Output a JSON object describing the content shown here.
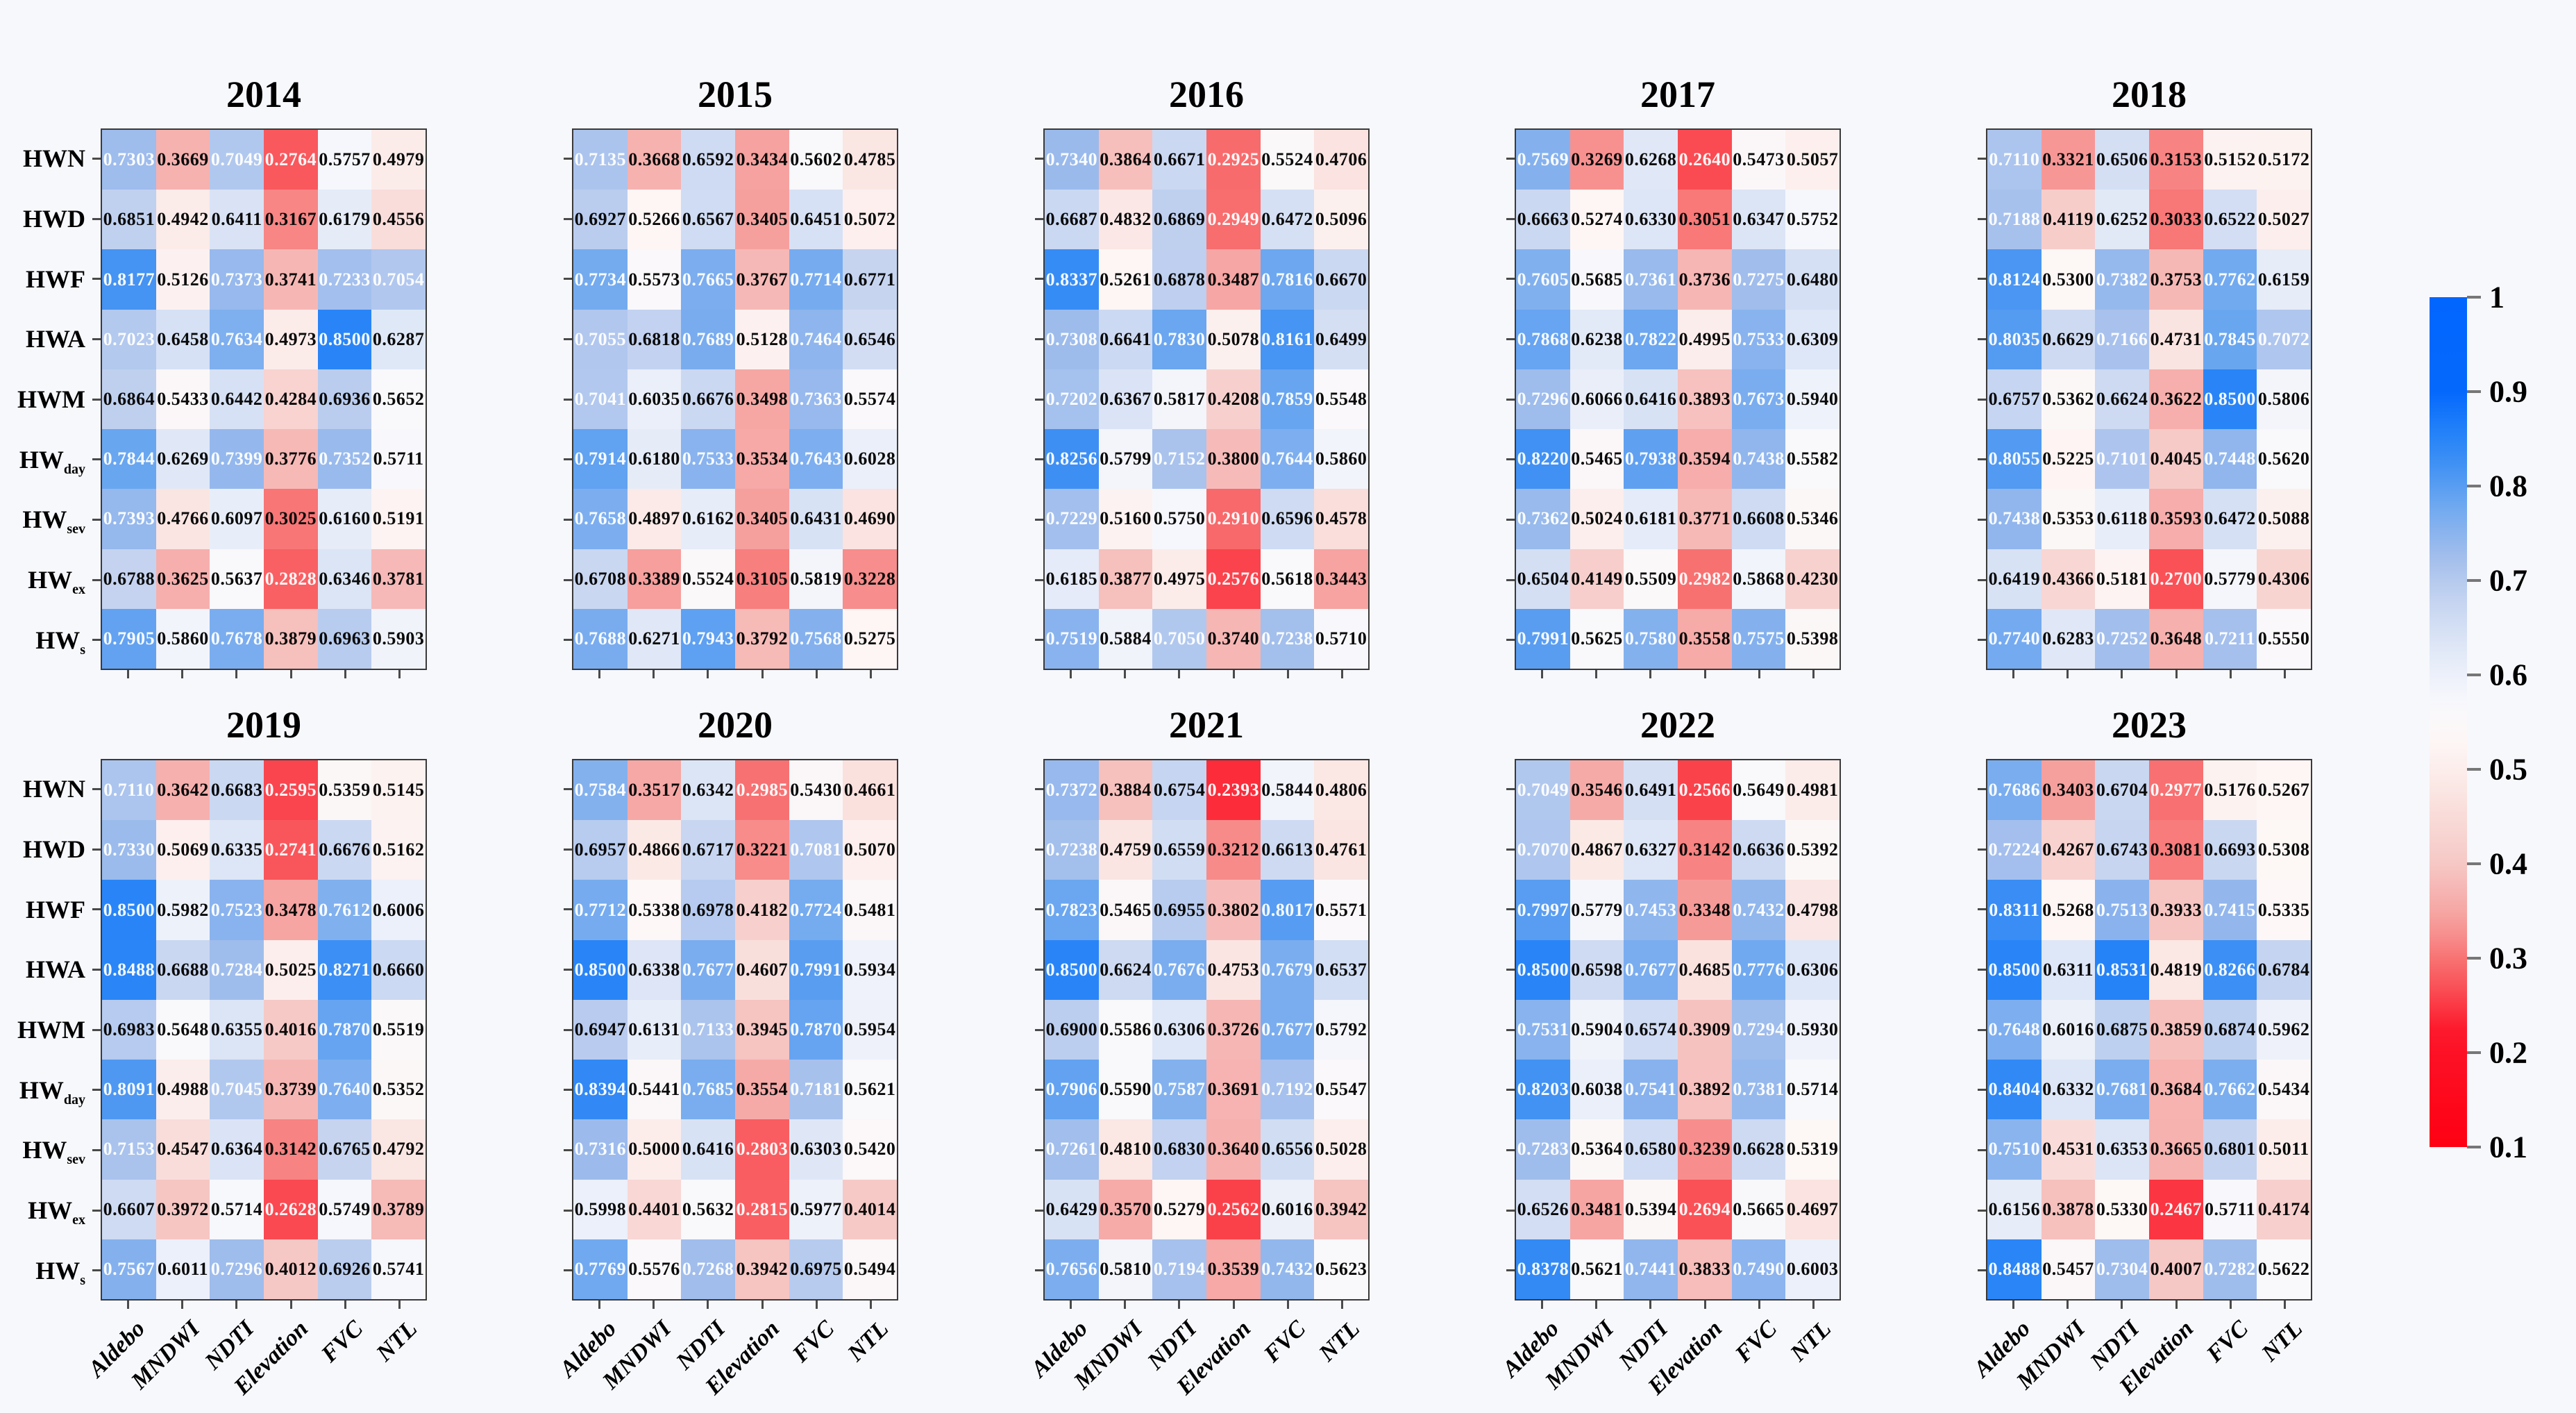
{
  "figure": {
    "background": "#f7f8fc"
  },
  "chart_data": {
    "type": "heatmap",
    "layout": "2 rows x 5 columns of yearly panels, shared colorbar at right",
    "col_labels": [
      "Aldebo",
      "MNDWI",
      "NDTI",
      "Elevation",
      "FVC",
      "NTL"
    ],
    "row_labels": [
      {
        "base": "HWN",
        "sub": ""
      },
      {
        "base": "HWD",
        "sub": ""
      },
      {
        "base": "HWF",
        "sub": ""
      },
      {
        "base": "HWA",
        "sub": ""
      },
      {
        "base": "HWM",
        "sub": ""
      },
      {
        "base": "HW",
        "sub": "day"
      },
      {
        "base": "HW",
        "sub": "sev"
      },
      {
        "base": "HW",
        "sub": "ex"
      },
      {
        "base": "HW",
        "sub": "s"
      }
    ],
    "colorbar": {
      "ticks": [
        "1",
        "0.9",
        "0.8",
        "0.7",
        "0.6",
        "0.5",
        "0.4",
        "0.3",
        "0.2",
        "0.1"
      ],
      "vmax": 1.0,
      "vmin": 0.1,
      "blue_max": "#0166fe",
      "center": "#ffffff",
      "red_max": "#fe0014"
    },
    "panels": [
      {
        "title": "2014",
        "values": [
          [
            "0.7303",
            "0.3669",
            "0.7049",
            "0.2764",
            "0.5757",
            "0.4979"
          ],
          [
            "0.6851",
            "0.4942",
            "0.6411",
            "0.3167",
            "0.6179",
            "0.4556"
          ],
          [
            "0.8177",
            "0.5126",
            "0.7373",
            "0.3741",
            "0.7233",
            "0.7054"
          ],
          [
            "0.7023",
            "0.6458",
            "0.7634",
            "0.4973",
            "0.8500",
            "0.6287"
          ],
          [
            "0.6864",
            "0.5433",
            "0.6442",
            "0.4284",
            "0.6936",
            "0.5652"
          ],
          [
            "0.7844",
            "0.6269",
            "0.7399",
            "0.3776",
            "0.7352",
            "0.5711"
          ],
          [
            "0.7393",
            "0.4766",
            "0.6097",
            "0.3025",
            "0.6160",
            "0.5191"
          ],
          [
            "0.6788",
            "0.3625",
            "0.5637",
            "0.2828",
            "0.6346",
            "0.3781"
          ],
          [
            "0.7905",
            "0.5860",
            "0.7678",
            "0.3879",
            "0.6963",
            "0.5903"
          ]
        ]
      },
      {
        "title": "2015",
        "values": [
          [
            "0.7135",
            "0.3668",
            "0.6592",
            "0.3434",
            "0.5602",
            "0.4785"
          ],
          [
            "0.6927",
            "0.5266",
            "0.6567",
            "0.3405",
            "0.6451",
            "0.5072"
          ],
          [
            "0.7734",
            "0.5573",
            "0.7665",
            "0.3767",
            "0.7714",
            "0.6771"
          ],
          [
            "0.7055",
            "0.6818",
            "0.7689",
            "0.5128",
            "0.7464",
            "0.6546"
          ],
          [
            "0.7041",
            "0.6035",
            "0.6676",
            "0.3498",
            "0.7363",
            "0.5574"
          ],
          [
            "0.7914",
            "0.6180",
            "0.7533",
            "0.3534",
            "0.7643",
            "0.6028"
          ],
          [
            "0.7658",
            "0.4897",
            "0.6162",
            "0.3405",
            "0.6431",
            "0.4690"
          ],
          [
            "0.6708",
            "0.3389",
            "0.5524",
            "0.3105",
            "0.5819",
            "0.3228"
          ],
          [
            "0.7688",
            "0.6271",
            "0.7943",
            "0.3792",
            "0.7568",
            "0.5275"
          ]
        ]
      },
      {
        "title": "2016",
        "values": [
          [
            "0.7340",
            "0.3864",
            "0.6671",
            "0.2925",
            "0.5524",
            "0.4706"
          ],
          [
            "0.6687",
            "0.4832",
            "0.6869",
            "0.2949",
            "0.6472",
            "0.5096"
          ],
          [
            "0.8337",
            "0.5261",
            "0.6878",
            "0.3487",
            "0.7816",
            "0.6670"
          ],
          [
            "0.7308",
            "0.6641",
            "0.7830",
            "0.5078",
            "0.8161",
            "0.6499"
          ],
          [
            "0.7202",
            "0.6367",
            "0.5817",
            "0.4208",
            "0.7859",
            "0.5548"
          ],
          [
            "0.8256",
            "0.5799",
            "0.7152",
            "0.3800",
            "0.7644",
            "0.5860"
          ],
          [
            "0.7229",
            "0.5160",
            "0.5750",
            "0.2910",
            "0.6596",
            "0.4578"
          ],
          [
            "0.6185",
            "0.3877",
            "0.4975",
            "0.2576",
            "0.5618",
            "0.3443"
          ],
          [
            "0.7519",
            "0.5884",
            "0.7050",
            "0.3740",
            "0.7238",
            "0.5710"
          ]
        ]
      },
      {
        "title": "2017",
        "values": [
          [
            "0.7569",
            "0.3269",
            "0.6268",
            "0.2640",
            "0.5473",
            "0.5057"
          ],
          [
            "0.6663",
            "0.5274",
            "0.6330",
            "0.3051",
            "0.6347",
            "0.5752"
          ],
          [
            "0.7605",
            "0.5685",
            "0.7361",
            "0.3736",
            "0.7275",
            "0.6480"
          ],
          [
            "0.7868",
            "0.6238",
            "0.7822",
            "0.4995",
            "0.7533",
            "0.6309"
          ],
          [
            "0.7296",
            "0.6066",
            "0.6416",
            "0.3893",
            "0.7673",
            "0.5940"
          ],
          [
            "0.8220",
            "0.5465",
            "0.7938",
            "0.3594",
            "0.7438",
            "0.5582"
          ],
          [
            "0.7362",
            "0.5024",
            "0.6181",
            "0.3771",
            "0.6608",
            "0.5346"
          ],
          [
            "0.6504",
            "0.4149",
            "0.5509",
            "0.2982",
            "0.5868",
            "0.4230"
          ],
          [
            "0.7991",
            "0.5625",
            "0.7580",
            "0.3558",
            "0.7575",
            "0.5398"
          ]
        ]
      },
      {
        "title": "2018",
        "values": [
          [
            "0.7110",
            "0.3321",
            "0.6506",
            "0.3153",
            "0.5152",
            "0.5172"
          ],
          [
            "0.7188",
            "0.4119",
            "0.6252",
            "0.3033",
            "0.6522",
            "0.5027"
          ],
          [
            "0.8124",
            "0.5300",
            "0.7382",
            "0.3753",
            "0.7762",
            "0.6159"
          ],
          [
            "0.8035",
            "0.6629",
            "0.7166",
            "0.4731",
            "0.7845",
            "0.7072"
          ],
          [
            "0.6757",
            "0.5362",
            "0.6624",
            "0.3622",
            "0.8500",
            "0.5806"
          ],
          [
            "0.8055",
            "0.5225",
            "0.7101",
            "0.4045",
            "0.7448",
            "0.5620"
          ],
          [
            "0.7438",
            "0.5353",
            "0.6118",
            "0.3593",
            "0.6472",
            "0.5088"
          ],
          [
            "0.6419",
            "0.4366",
            "0.5181",
            "0.2700",
            "0.5779",
            "0.4306"
          ],
          [
            "0.7740",
            "0.6283",
            "0.7252",
            "0.3648",
            "0.7211",
            "0.5550"
          ]
        ]
      },
      {
        "title": "2019",
        "values": [
          [
            "0.7110",
            "0.3642",
            "0.6683",
            "0.2595",
            "0.5359",
            "0.5145"
          ],
          [
            "0.7330",
            "0.5069",
            "0.6335",
            "0.2741",
            "0.6676",
            "0.5162"
          ],
          [
            "0.8500",
            "0.5982",
            "0.7523",
            "0.3478",
            "0.7612",
            "0.6006"
          ],
          [
            "0.8488",
            "0.6688",
            "0.7284",
            "0.5025",
            "0.8271",
            "0.6660"
          ],
          [
            "0.6983",
            "0.5648",
            "0.6355",
            "0.4016",
            "0.7870",
            "0.5519"
          ],
          [
            "0.8091",
            "0.4988",
            "0.7045",
            "0.3739",
            "0.7640",
            "0.5352"
          ],
          [
            "0.7153",
            "0.4547",
            "0.6364",
            "0.3142",
            "0.6765",
            "0.4792"
          ],
          [
            "0.6607",
            "0.3972",
            "0.5714",
            "0.2628",
            "0.5749",
            "0.3789"
          ],
          [
            "0.7567",
            "0.6011",
            "0.7296",
            "0.4012",
            "0.6926",
            "0.5741"
          ]
        ]
      },
      {
        "title": "2020",
        "values": [
          [
            "0.7584",
            "0.3517",
            "0.6342",
            "0.2985",
            "0.5430",
            "0.4661"
          ],
          [
            "0.6957",
            "0.4866",
            "0.6717",
            "0.3221",
            "0.7081",
            "0.5070"
          ],
          [
            "0.7712",
            "0.5338",
            "0.6978",
            "0.4182",
            "0.7724",
            "0.5481"
          ],
          [
            "0.8500",
            "0.6338",
            "0.7677",
            "0.4607",
            "0.7991",
            "0.5934"
          ],
          [
            "0.6947",
            "0.6131",
            "0.7133",
            "0.3945",
            "0.7870",
            "0.5954"
          ],
          [
            "0.8394",
            "0.5441",
            "0.7685",
            "0.3554",
            "0.7181",
            "0.5621"
          ],
          [
            "0.7316",
            "0.5000",
            "0.6416",
            "0.2803",
            "0.6303",
            "0.5420"
          ],
          [
            "0.5998",
            "0.4401",
            "0.5632",
            "0.2815",
            "0.5977",
            "0.4014"
          ],
          [
            "0.7769",
            "0.5576",
            "0.7268",
            "0.3942",
            "0.6975",
            "0.5494"
          ]
        ]
      },
      {
        "title": "2021",
        "values": [
          [
            "0.7372",
            "0.3884",
            "0.6754",
            "0.2393",
            "0.5844",
            "0.4806"
          ],
          [
            "0.7238",
            "0.4759",
            "0.6559",
            "0.3212",
            "0.6613",
            "0.4761"
          ],
          [
            "0.7823",
            "0.5465",
            "0.6955",
            "0.3802",
            "0.8017",
            "0.5571"
          ],
          [
            "0.8500",
            "0.6624",
            "0.7676",
            "0.4753",
            "0.7679",
            "0.6537"
          ],
          [
            "0.6900",
            "0.5586",
            "0.6306",
            "0.3726",
            "0.7677",
            "0.5792"
          ],
          [
            "0.7906",
            "0.5590",
            "0.7587",
            "0.3691",
            "0.7192",
            "0.5547"
          ],
          [
            "0.7261",
            "0.4810",
            "0.6830",
            "0.3640",
            "0.6556",
            "0.5028"
          ],
          [
            "0.6429",
            "0.3570",
            "0.5279",
            "0.2562",
            "0.6016",
            "0.3942"
          ],
          [
            "0.7656",
            "0.5810",
            "0.7194",
            "0.3539",
            "0.7432",
            "0.5623"
          ]
        ]
      },
      {
        "title": "2022",
        "values": [
          [
            "0.7049",
            "0.3546",
            "0.6491",
            "0.2566",
            "0.5649",
            "0.4981"
          ],
          [
            "0.7070",
            "0.4867",
            "0.6327",
            "0.3142",
            "0.6636",
            "0.5392"
          ],
          [
            "0.7997",
            "0.5779",
            "0.7453",
            "0.3348",
            "0.7432",
            "0.4798"
          ],
          [
            "0.8500",
            "0.6598",
            "0.7677",
            "0.4685",
            "0.7776",
            "0.6306"
          ],
          [
            "0.7531",
            "0.5904",
            "0.6574",
            "0.3909",
            "0.7294",
            "0.5930"
          ],
          [
            "0.8203",
            "0.6038",
            "0.7541",
            "0.3892",
            "0.7381",
            "0.5714"
          ],
          [
            "0.7283",
            "0.5364",
            "0.6580",
            "0.3239",
            "0.6628",
            "0.5319"
          ],
          [
            "0.6526",
            "0.3481",
            "0.5394",
            "0.2694",
            "0.5665",
            "0.4697"
          ],
          [
            "0.8378",
            "0.5621",
            "0.7441",
            "0.3833",
            "0.7490",
            "0.6003"
          ]
        ]
      },
      {
        "title": "2023",
        "values": [
          [
            "0.7686",
            "0.3403",
            "0.6704",
            "0.2977",
            "0.5176",
            "0.5267"
          ],
          [
            "0.7224",
            "0.4267",
            "0.6743",
            "0.3081",
            "0.6693",
            "0.5308"
          ],
          [
            "0.8311",
            "0.5268",
            "0.7513",
            "0.3933",
            "0.7415",
            "0.5335"
          ],
          [
            "0.8500",
            "0.6311",
            "0.8531",
            "0.4819",
            "0.8266",
            "0.6784"
          ],
          [
            "0.7648",
            "0.6016",
            "0.6875",
            "0.3859",
            "0.6874",
            "0.5962"
          ],
          [
            "0.8404",
            "0.6332",
            "0.7681",
            "0.3684",
            "0.7662",
            "0.5434"
          ],
          [
            "0.7510",
            "0.4531",
            "0.6353",
            "0.3665",
            "0.6801",
            "0.5011"
          ],
          [
            "0.6156",
            "0.3878",
            "0.5330",
            "0.2467",
            "0.5711",
            "0.4174"
          ],
          [
            "0.8488",
            "0.5457",
            "0.7304",
            "0.4007",
            "0.7282",
            "0.5622"
          ]
        ]
      }
    ]
  }
}
